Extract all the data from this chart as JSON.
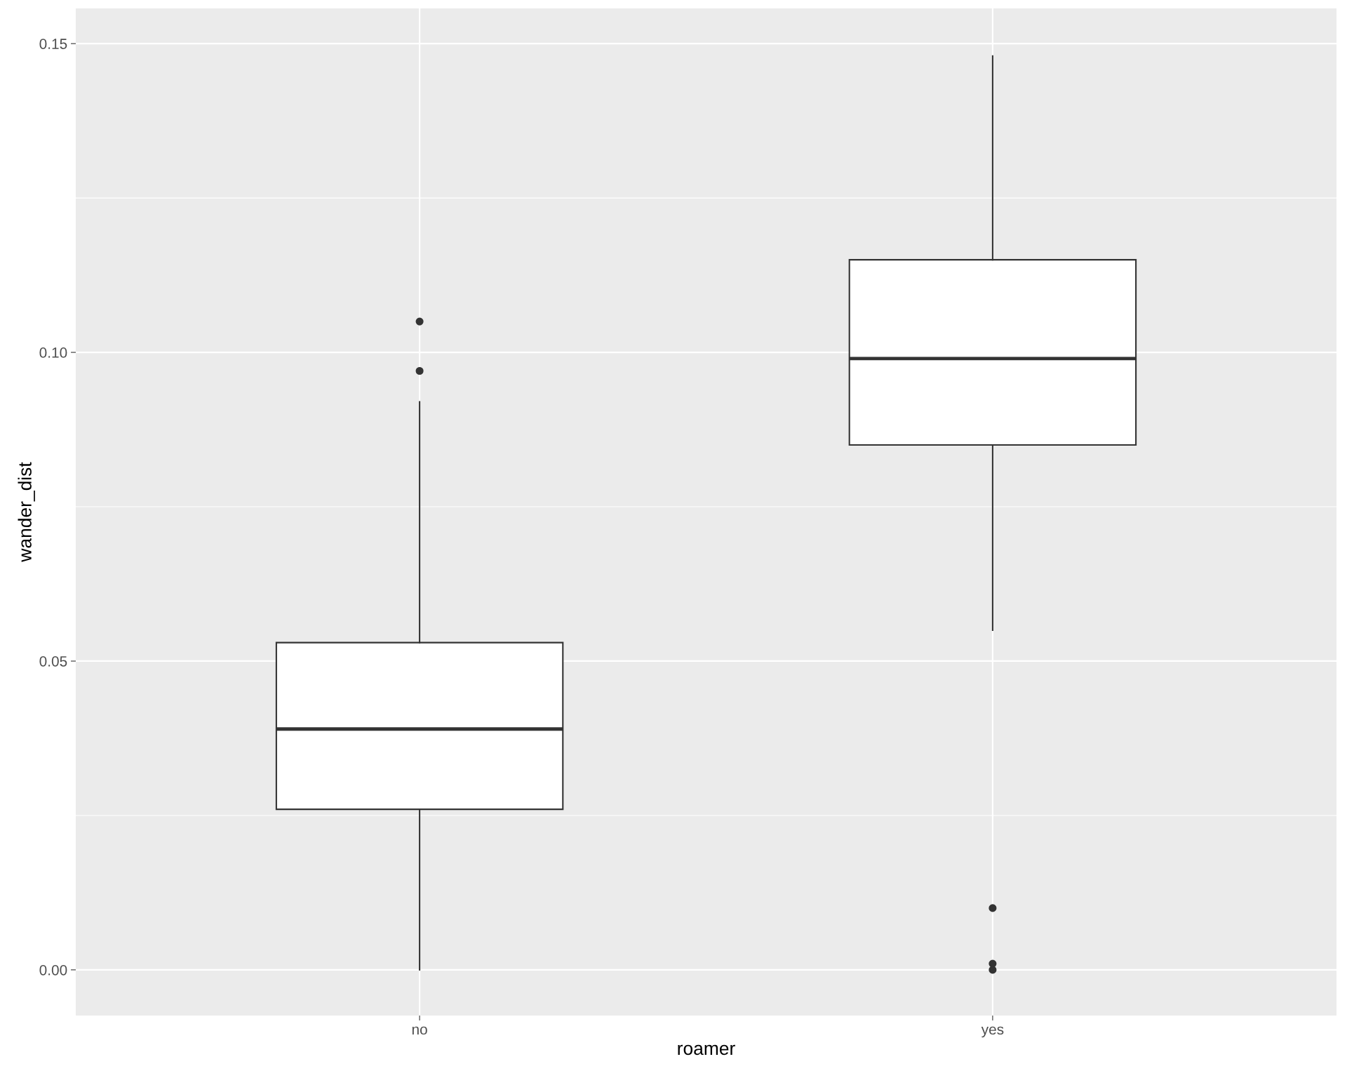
{
  "chart_data": {
    "type": "box",
    "xlabel": "roamer",
    "ylabel": "wander_dist",
    "categories": [
      "no",
      "yes"
    ],
    "boxes": [
      {
        "low": 0.0,
        "q1": 0.026,
        "median": 0.039,
        "q3": 0.053,
        "high": 0.092,
        "outliers": [
          0.105,
          0.097
        ]
      },
      {
        "low": 0.055,
        "q1": 0.085,
        "median": 0.099,
        "q3": 0.115,
        "high": 0.148,
        "outliers": [
          0.01,
          0.001,
          0.0
        ]
      }
    ],
    "ylim": [
      -0.0074,
      0.1557
    ],
    "yticks": [
      {
        "value": 0,
        "label": "0.00"
      },
      {
        "value": 0.05,
        "label": "0.05"
      },
      {
        "value": 0.1,
        "label": "0.10"
      },
      {
        "value": 0.15,
        "label": "0.15"
      }
    ],
    "grid": true
  }
}
